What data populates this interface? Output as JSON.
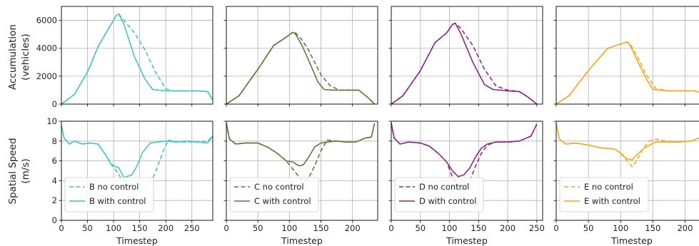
{
  "figure": {
    "row_labels": [
      [
        "Accumulation",
        "(vehicles)"
      ],
      [
        "Spatial Speed",
        "(m/s)"
      ]
    ],
    "xlabel": "Timestep"
  },
  "chart_data": [
    {
      "type": "line",
      "panel": "B",
      "row": "accumulation",
      "ylabel": "Accumulation (vehicles)",
      "xlim": [
        0,
        290
      ],
      "ylim": [
        0,
        7000
      ],
      "xticks": [
        0,
        50,
        100,
        150,
        200,
        250
      ],
      "yticks": [
        0,
        2000,
        4000,
        6000
      ],
      "grid": true,
      "series": [
        {
          "style": "dashed",
          "color": "#46c3ca",
          "x": [
            0,
            25,
            50,
            70,
            90,
            100,
            105,
            110,
            120,
            140,
            160,
            180,
            200,
            210,
            220,
            240,
            260,
            280,
            290
          ],
          "y": [
            0,
            700,
            2300,
            4100,
            5400,
            6000,
            6350,
            6450,
            6000,
            5100,
            3900,
            2300,
            1100,
            950,
            950,
            950,
            950,
            900,
            300
          ]
        },
        {
          "style": "solid",
          "color": "#46c3ca",
          "x": [
            0,
            25,
            50,
            70,
            90,
            100,
            105,
            110,
            120,
            140,
            160,
            175,
            200,
            210,
            220,
            240,
            260,
            280,
            290
          ],
          "y": [
            0,
            700,
            2300,
            4100,
            5400,
            6000,
            6350,
            6450,
            5700,
            3400,
            1800,
            1050,
            950,
            950,
            950,
            950,
            950,
            900,
            300
          ]
        }
      ]
    },
    {
      "type": "line",
      "panel": "C",
      "row": "accumulation",
      "xlim": [
        0,
        240
      ],
      "ylim": [
        0,
        7000
      ],
      "xticks": [
        0,
        50,
        100,
        150,
        200
      ],
      "yticks": [
        0,
        2000,
        4000,
        6000
      ],
      "grid": true,
      "series": [
        {
          "style": "dashed",
          "color": "#5b7a3c",
          "x": [
            0,
            20,
            50,
            75,
            95,
            105,
            110,
            120,
            130,
            150,
            165,
            180,
            200,
            210,
            225,
            235
          ],
          "y": [
            0,
            600,
            2500,
            4200,
            4800,
            5150,
            5100,
            4600,
            3900,
            2100,
            1300,
            1000,
            1000,
            1000,
            450,
            0
          ]
        },
        {
          "style": "solid",
          "color": "#5b7a3c",
          "x": [
            0,
            20,
            50,
            75,
            95,
            105,
            110,
            120,
            130,
            145,
            155,
            170,
            200,
            210,
            225,
            235
          ],
          "y": [
            0,
            600,
            2500,
            4200,
            4800,
            5150,
            5000,
            4200,
            3200,
            1600,
            1050,
            1000,
            1000,
            1000,
            450,
            0
          ]
        }
      ]
    },
    {
      "type": "line",
      "panel": "D",
      "row": "accumulation",
      "xlim": [
        0,
        260
      ],
      "ylim": [
        0,
        7000
      ],
      "xticks": [
        0,
        50,
        100,
        150,
        200,
        250
      ],
      "yticks": [
        0,
        2000,
        4000,
        6000
      ],
      "grid": true,
      "series": [
        {
          "style": "dashed",
          "color": "#8b2a82",
          "x": [
            0,
            20,
            50,
            75,
            95,
            105,
            110,
            120,
            140,
            160,
            180,
            200,
            220,
            235,
            250
          ],
          "y": [
            0,
            600,
            2400,
            4400,
            5100,
            5700,
            5800,
            5400,
            4200,
            2500,
            1300,
            1000,
            900,
            500,
            0
          ]
        },
        {
          "style": "solid",
          "color": "#8b2a82",
          "x": [
            0,
            20,
            50,
            75,
            95,
            105,
            110,
            120,
            140,
            160,
            175,
            200,
            220,
            235,
            250
          ],
          "y": [
            0,
            600,
            2400,
            4400,
            5100,
            5700,
            5800,
            5000,
            3000,
            1400,
            1050,
            950,
            900,
            500,
            0
          ]
        }
      ]
    },
    {
      "type": "line",
      "panel": "E",
      "row": "accumulation",
      "xlim": [
        0,
        235
      ],
      "ylim": [
        0,
        7000
      ],
      "xticks": [
        0,
        50,
        100,
        150,
        200
      ],
      "yticks": [
        0,
        2000,
        4000,
        6000
      ],
      "grid": true,
      "series": [
        {
          "style": "dashed",
          "color": "#f5a623",
          "x": [
            0,
            20,
            50,
            80,
            100,
            110,
            115,
            125,
            140,
            155,
            175,
            200,
            215,
            225,
            235
          ],
          "y": [
            0,
            600,
            2400,
            4000,
            4300,
            4450,
            4300,
            3500,
            2100,
            1100,
            950,
            950,
            950,
            800,
            300
          ]
        },
        {
          "style": "solid",
          "color": "#f5a623",
          "x": [
            0,
            20,
            50,
            80,
            100,
            110,
            115,
            125,
            140,
            150,
            175,
            200,
            215,
            225,
            235
          ],
          "y": [
            0,
            600,
            2400,
            4000,
            4300,
            4450,
            4200,
            3200,
            1800,
            1050,
            950,
            950,
            950,
            800,
            300
          ]
        }
      ]
    },
    {
      "type": "line",
      "panel": "B",
      "row": "speed",
      "ylabel": "Spatial Speed (m/s)",
      "xlabel": "Timestep",
      "xlim": [
        0,
        290
      ],
      "ylim": [
        0,
        10
      ],
      "xticks": [
        0,
        50,
        100,
        150,
        200,
        250
      ],
      "yticks": [
        0,
        2,
        4,
        6,
        8,
        10
      ],
      "grid": true,
      "legend": "lower-left",
      "series": [
        {
          "name": "B no control",
          "style": "dashed",
          "color": "#46c3ca",
          "x": [
            0,
            5,
            15,
            25,
            40,
            55,
            70,
            85,
            95,
            105,
            115,
            125,
            135,
            145,
            155,
            165,
            175,
            185,
            195,
            205,
            220,
            240,
            260,
            280,
            290
          ],
          "y": [
            9.6,
            8.3,
            7.7,
            8.0,
            7.7,
            7.8,
            7.7,
            6.6,
            5.7,
            5.0,
            4.2,
            3.6,
            3.1,
            2.9,
            3.1,
            3.5,
            4.2,
            5.5,
            7.0,
            8.1,
            7.9,
            7.9,
            7.9,
            8.0,
            8.5
          ]
        },
        {
          "name": "B with control",
          "style": "solid",
          "color": "#46c3ca",
          "x": [
            0,
            5,
            15,
            25,
            40,
            55,
            70,
            85,
            95,
            105,
            110,
            120,
            125,
            135,
            145,
            155,
            170,
            185,
            200,
            220,
            240,
            260,
            280,
            290
          ],
          "y": [
            9.6,
            8.3,
            7.7,
            8.0,
            7.7,
            7.8,
            7.7,
            6.6,
            5.7,
            5.4,
            5.3,
            4.3,
            4.4,
            4.6,
            5.5,
            6.8,
            7.8,
            7.9,
            8.0,
            7.9,
            8.0,
            7.9,
            7.8,
            8.5
          ]
        }
      ]
    },
    {
      "type": "line",
      "panel": "C",
      "row": "speed",
      "xlabel": "Timestep",
      "xlim": [
        0,
        240
      ],
      "ylim": [
        0,
        10
      ],
      "xticks": [
        0,
        50,
        100,
        150,
        200
      ],
      "yticks": [
        0,
        2,
        4,
        6,
        8,
        10
      ],
      "grid": true,
      "legend": "lower-left",
      "series": [
        {
          "name": "C no control",
          "style": "dashed",
          "color": "#5b7a3c",
          "x": [
            0,
            5,
            15,
            30,
            50,
            65,
            80,
            95,
            105,
            115,
            122,
            130,
            140,
            150,
            160,
            175,
            190,
            205,
            220,
            230,
            235
          ],
          "y": [
            9.8,
            8.2,
            7.7,
            7.8,
            7.8,
            7.4,
            6.8,
            6.0,
            5.2,
            4.4,
            3.9,
            4.2,
            5.5,
            7.0,
            8.1,
            8.0,
            7.9,
            7.9,
            8.3,
            8.4,
            9.8
          ]
        },
        {
          "name": "C with control",
          "style": "solid",
          "color": "#5b7a3c",
          "x": [
            0,
            5,
            15,
            30,
            50,
            65,
            80,
            95,
            105,
            115,
            122,
            130,
            140,
            150,
            160,
            175,
            190,
            205,
            220,
            230,
            235
          ],
          "y": [
            9.8,
            8.2,
            7.7,
            7.8,
            7.8,
            7.4,
            6.8,
            6.0,
            5.9,
            5.5,
            5.6,
            6.3,
            7.4,
            7.8,
            7.9,
            8.0,
            7.9,
            7.9,
            8.3,
            8.4,
            9.8
          ]
        }
      ]
    },
    {
      "type": "line",
      "panel": "D",
      "row": "speed",
      "xlabel": "Timestep",
      "xlim": [
        0,
        260
      ],
      "ylim": [
        0,
        10
      ],
      "xticks": [
        0,
        50,
        100,
        150,
        200,
        250
      ],
      "yticks": [
        0,
        2,
        4,
        6,
        8,
        10
      ],
      "grid": true,
      "legend": "lower-left",
      "series": [
        {
          "name": "D no control",
          "style": "dashed",
          "color": "#8b2a82",
          "x": [
            0,
            5,
            15,
            30,
            50,
            65,
            80,
            95,
            105,
            115,
            125,
            135,
            145,
            155,
            165,
            180,
            200,
            220,
            240,
            250
          ],
          "y": [
            9.8,
            8.3,
            7.7,
            7.9,
            7.8,
            7.5,
            6.8,
            5.9,
            4.4,
            3.3,
            3.1,
            4.0,
            5.5,
            6.8,
            7.6,
            7.9,
            7.9,
            8.0,
            8.5,
            9.7
          ]
        },
        {
          "name": "D with control",
          "style": "solid",
          "color": "#8b2a82",
          "x": [
            0,
            5,
            15,
            30,
            50,
            65,
            80,
            95,
            105,
            115,
            125,
            135,
            145,
            155,
            165,
            180,
            200,
            220,
            240,
            250
          ],
          "y": [
            9.8,
            8.3,
            7.7,
            7.9,
            7.8,
            7.5,
            6.8,
            5.9,
            5.0,
            4.4,
            4.6,
            5.3,
            6.4,
            7.3,
            7.7,
            7.9,
            7.9,
            8.0,
            8.5,
            9.7
          ]
        }
      ]
    },
    {
      "type": "line",
      "panel": "E",
      "row": "speed",
      "xlabel": "Timestep",
      "xlim": [
        0,
        235
      ],
      "ylim": [
        0,
        10
      ],
      "xticks": [
        0,
        50,
        100,
        150,
        200
      ],
      "yticks": [
        0,
        2,
        4,
        6,
        8,
        10
      ],
      "grid": true,
      "legend": "lower-left",
      "series": [
        {
          "name": "E no control",
          "style": "dashed",
          "color": "#f5a623",
          "x": [
            0,
            5,
            15,
            30,
            50,
            70,
            90,
            100,
            110,
            118,
            125,
            135,
            145,
            155,
            170,
            190,
            210,
            225,
            235
          ],
          "y": [
            9.8,
            8.2,
            7.7,
            7.8,
            7.6,
            7.3,
            7.2,
            6.8,
            6.0,
            5.4,
            6.0,
            7.3,
            8.0,
            8.2,
            8.0,
            7.9,
            8.0,
            8.4,
            9.6
          ]
        },
        {
          "name": "E with control",
          "style": "solid",
          "color": "#f5a623",
          "x": [
            0,
            5,
            15,
            30,
            50,
            70,
            90,
            100,
            110,
            118,
            125,
            135,
            145,
            155,
            170,
            190,
            210,
            225,
            235
          ],
          "y": [
            9.8,
            8.2,
            7.7,
            7.8,
            7.6,
            7.3,
            7.2,
            6.8,
            6.2,
            6.1,
            6.6,
            7.2,
            7.6,
            7.9,
            7.9,
            7.9,
            8.0,
            8.4,
            9.6
          ]
        }
      ]
    }
  ]
}
